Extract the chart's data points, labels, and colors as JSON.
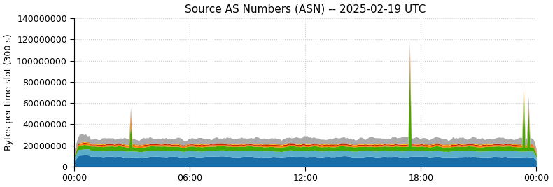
{
  "title": "Source AS Numbers (ASN) -- 2025-02-19 UTC",
  "ylabel": "Bytes per time slot (300 s)",
  "xlabel": "",
  "xlim": [
    0,
    288
  ],
  "ylim": [
    0,
    140000000
  ],
  "yticks": [
    0,
    20000000,
    40000000,
    60000000,
    80000000,
    100000000,
    120000000,
    140000000
  ],
  "xtick_labels": [
    "00:00",
    "06:00",
    "12:00",
    "18:00",
    "00:00"
  ],
  "xtick_positions": [
    0,
    72,
    144,
    216,
    288
  ],
  "n_points": 289,
  "blue_dark_base": 9500000,
  "blue_dark_noise": 600000,
  "blue_light_base": 5500000,
  "blue_light_noise": 500000,
  "green_base": 4000000,
  "green_noise": 400000,
  "orange_base": 1200000,
  "orange_noise": 200000,
  "red_base": 900000,
  "red_noise": 150000,
  "yellow_base": 500000,
  "yellow_noise": 100000,
  "darkred_base": 300000,
  "darkred_noise": 80000,
  "gray_base": 5000000,
  "gray_noise": 1500000,
  "spike1_x": 35,
  "spike1_green": 22000000,
  "spike1_orange": 8000000,
  "spike2_x": 209,
  "spike2_green": 78000000,
  "spike2_orange": 12000000,
  "spike3_x": 280,
  "spike3_green": 50000000,
  "spike3_orange": 6000000,
  "spike4_x": 283,
  "spike4_green": 35000000,
  "spike4_orange": 3000000,
  "early_bump_start": 3,
  "early_bump_end": 10,
  "early_bump_factor": 1.4,
  "colors": {
    "blue_dark": "#1a6ea8",
    "blue_light": "#5aaecc",
    "green": "#44aa00",
    "orange": "#ff7700",
    "red": "#cc2200",
    "yellow": "#ffcc00",
    "darkred": "#880000",
    "gray": "#aaaaaa"
  },
  "background_color": "#ffffff",
  "grid_color": "#cccccc",
  "title_fontsize": 11,
  "label_fontsize": 9,
  "tick_fontsize": 9
}
